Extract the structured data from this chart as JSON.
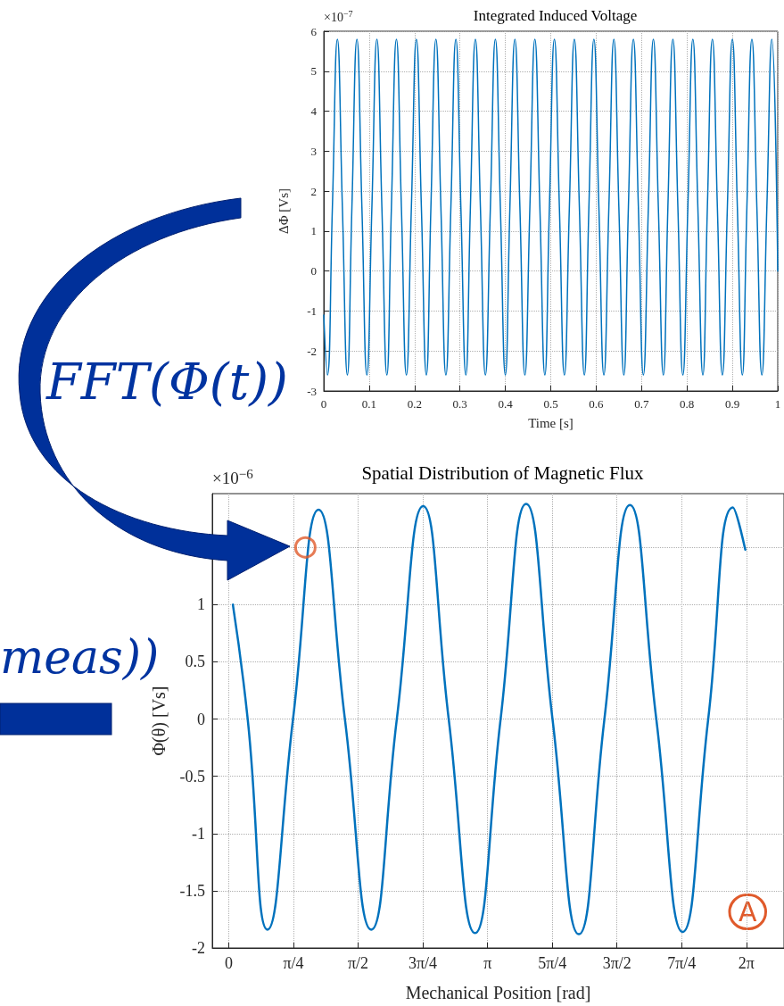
{
  "chart_data": [
    {
      "type": "line",
      "title": "Integrated Induced Voltage",
      "xlabel": "Time [s]",
      "ylabel": "ΔΦ [Vs]",
      "xlim": [
        0,
        1
      ],
      "ylim": [
        -3,
        6
      ],
      "xticks": [
        0,
        0.1,
        0.2,
        0.3,
        0.4,
        0.5,
        0.6,
        0.7,
        0.8,
        0.9,
        1
      ],
      "yticks": [
        -3,
        -2,
        -1,
        0,
        1,
        2,
        3,
        4,
        5,
        6
      ],
      "grid": true,
      "annotations": [
        "×10$^{−7}$",
        "FFT(Φ(t))"
      ],
      "series": [
        {
          "color": "#0072bd",
          "x": [
            0,
            0.008,
            0.019,
            0.03,
            0.041,
            0.052,
            0.062,
            0.073,
            0.084,
            0.095,
            0.106,
            0.117,
            0.128,
            0.139,
            0.149,
            0.16,
            0.171,
            0.182,
            0.193,
            0.204,
            0.215,
            0.226,
            0.236,
            0.247,
            0.258,
            0.269,
            0.28,
            0.291,
            0.302,
            0.313,
            0.323,
            0.334,
            0.345,
            0.356,
            0.367,
            0.378,
            0.389,
            0.4,
            0.41,
            0.421,
            0.432,
            0.443,
            0.454,
            0.465,
            0.476,
            0.487,
            0.497,
            0.508,
            0.519,
            0.53,
            0.541,
            0.552,
            0.563,
            0.574,
            0.584,
            0.595,
            0.606,
            0.617,
            0.628,
            0.639,
            0.65,
            0.661,
            0.671,
            0.682,
            0.693,
            0.704,
            0.715,
            0.726,
            0.737,
            0.748,
            0.758,
            0.769,
            0.78,
            0.791,
            0.802,
            0.813,
            0.824,
            0.835,
            0.845,
            0.856,
            0.867,
            0.878,
            0.889,
            0.9,
            0.911,
            0.922,
            0.932,
            0.943,
            0.954,
            0.965,
            0.976,
            0.987,
            1
          ],
          "values": [
            -1.1,
            -2.6,
            1.6,
            5.8,
            1.6,
            -2.6,
            1.6,
            5.8,
            1.6,
            -2.6,
            1.6,
            5.8,
            1.6,
            -2.6,
            1.6,
            5.8,
            1.6,
            -2.6,
            1.6,
            5.8,
            1.6,
            -2.6,
            1.6,
            5.8,
            1.6,
            -2.6,
            1.6,
            5.8,
            1.6,
            -2.6,
            1.6,
            5.8,
            1.6,
            -2.6,
            1.6,
            5.8,
            1.6,
            -2.6,
            1.6,
            5.8,
            1.6,
            -2.6,
            1.6,
            5.8,
            1.6,
            -2.6,
            1.6,
            5.8,
            1.6,
            -2.6,
            1.6,
            5.8,
            1.6,
            -2.6,
            1.6,
            5.8,
            1.6,
            -2.6,
            1.6,
            5.8,
            1.6,
            -2.6,
            1.6,
            5.8,
            1.6,
            -2.6,
            1.6,
            5.8,
            1.6,
            -2.6,
            1.6,
            5.8,
            1.6,
            -2.6,
            1.6,
            5.8,
            1.6,
            -2.6,
            1.6,
            5.8,
            1.6,
            -2.6,
            1.6,
            5.8,
            1.6,
            -2.6,
            1.6,
            5.8,
            1.6,
            -2.6,
            1.6,
            5.8,
            0
          ]
        }
      ]
    },
    {
      "type": "line",
      "title": "Spatial Distribution of Magnetic Flux",
      "xlabel": "Mechanical Position [rad]",
      "ylabel": "Φ(θ) [Vs]",
      "xlim": [
        -0.2,
        6.74
      ],
      "ylim": [
        -2,
        1.97
      ],
      "xticks": [
        0,
        {
          "value": 0.785,
          "label": "π/4"
        },
        {
          "value": 1.571,
          "label": "π/2"
        },
        {
          "value": 2.356,
          "label": "3π/4"
        },
        {
          "value": 3.142,
          "label": "π"
        },
        {
          "value": 3.927,
          "label": "5π/4"
        },
        {
          "value": 4.712,
          "label": "3π/2"
        },
        {
          "value": 5.498,
          "label": "7π/4"
        },
        {
          "value": 6.283,
          "label": "2π"
        }
      ],
      "yticks": [
        -2,
        -1.5,
        -1,
        -0.5,
        0,
        0.5,
        1,
        {
          "value": 1.5,
          "label": null
        }
      ],
      "grid": true,
      "annotations": [
        "×10$^{−6}$",
        "A",
        "meas))"
      ],
      "series": [
        {
          "color": "#0072bd",
          "x": [
            0.05,
            0.23,
            0.47,
            0.78,
            1.09,
            1.41,
            1.73,
            2.04,
            2.36,
            2.67,
            2.99,
            3.3,
            3.61,
            3.93,
            4.25,
            4.56,
            4.87,
            5.19,
            5.51,
            5.82,
            6.12,
            6.27
          ],
          "values": [
            1,
            0,
            -1.84,
            0,
            1.83,
            0,
            -1.84,
            0,
            1.86,
            0,
            -1.87,
            0,
            1.88,
            0,
            -1.88,
            0,
            1.87,
            0,
            -1.86,
            0,
            1.85,
            1.48
          ]
        },
        {
          "type": "scatter",
          "marker": "circle",
          "color": "#e05a2b",
          "x": [
            0.93
          ],
          "values": [
            1.5
          ]
        }
      ]
    }
  ]
}
